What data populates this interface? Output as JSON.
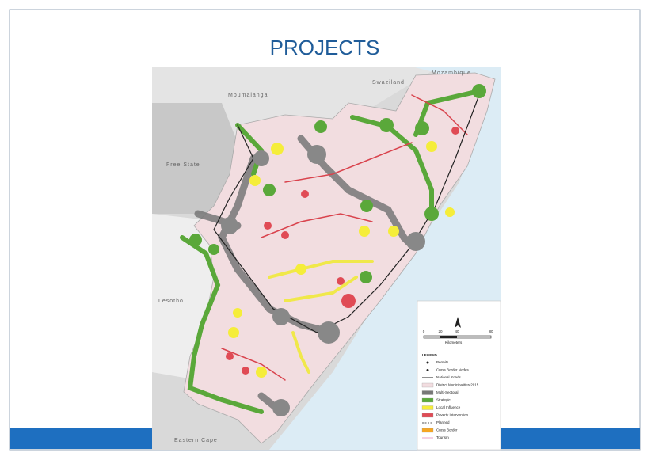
{
  "title": "PROJECTS",
  "map": {
    "place_labels": [
      "Mozambique",
      "Swaziland",
      "Mpumalanga",
      "Free State",
      "Lesotho",
      "Eastern Cape"
    ],
    "legend": {
      "scale_labels": [
        "0",
        "20",
        "40",
        "80"
      ],
      "unit": "Kilometers",
      "title": "LEGEND",
      "items": [
        "Permits",
        "Cross Border Nodes",
        "National Roads",
        "District Municipalities 2015",
        "Multi-Sectoral",
        "Strategic",
        "Local Influence",
        "Poverty Intervention",
        "Planned",
        "Cross Border",
        "Tourism"
      ]
    }
  }
}
